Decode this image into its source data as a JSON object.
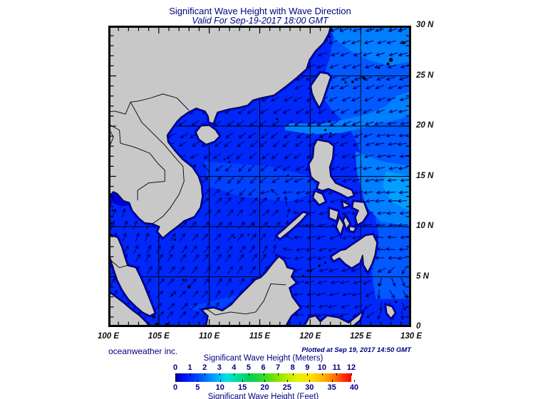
{
  "page": {
    "title": "Significant Wave Height with Wave Direction",
    "subtitle": "Valid For Sep-19-2017 18:00 GMT"
  },
  "footer": {
    "credit": "oceanweather inc.",
    "plotted_at": "Plotted at Sep 19, 2017 14:50 GMT"
  },
  "axes": {
    "lon_range": [
      100,
      130
    ],
    "lat_range": [
      0,
      30
    ],
    "grid_step_deg": 5,
    "tick_step_deg": 1,
    "x_ticks": [
      100,
      105,
      110,
      115,
      120,
      125,
      130
    ],
    "x_labels": [
      "100 E",
      "105 E",
      "110 E",
      "115 E",
      "120 E",
      "125 E",
      "130 E"
    ],
    "y_ticks": [
      30,
      25,
      20,
      15,
      10,
      5,
      0
    ],
    "y_labels": [
      "30 N",
      "25 N",
      "20 N",
      "15 N",
      "10 N",
      "5 N",
      "0"
    ]
  },
  "legend": {
    "title_meters": "Significant Wave Height (Meters)",
    "title_feet": "Significant Wave Height (Feet)",
    "meters_ticks": [
      0,
      1,
      2,
      3,
      4,
      5,
      6,
      7,
      8,
      9,
      10,
      11,
      12
    ],
    "feet_ticks": [
      0,
      5,
      10,
      15,
      20,
      25,
      30,
      35,
      40
    ],
    "meters_max": 12,
    "feet_per_meter": 3.28084,
    "gradient_stops": [
      [
        "#000000",
        0
      ],
      [
        "#0000c8",
        1.2
      ],
      [
        "#0024ff",
        8
      ],
      [
        "#0064ff",
        16
      ],
      [
        "#00aaff",
        23
      ],
      [
        "#00e0e0",
        29
      ],
      [
        "#00dfa0",
        35
      ],
      [
        "#00d056",
        42
      ],
      [
        "#2edc2e",
        50
      ],
      [
        "#7ce400",
        57
      ],
      [
        "#b6ec00",
        63
      ],
      [
        "#e8f000",
        70
      ],
      [
        "#ffe000",
        77
      ],
      [
        "#ffb400",
        84
      ],
      [
        "#ff7800",
        90
      ],
      [
        "#ff3c00",
        95
      ],
      [
        "#ff0000",
        100
      ]
    ]
  },
  "colors": {
    "title_text": "#000080",
    "axis_text": "#111111",
    "land": "#c8c8c8",
    "coastline": "#000000",
    "sea_base": "#0028f8",
    "sea_coastal_dark": "#0000d8",
    "sea_mid": "#0042ff",
    "sea_light": "#005aff",
    "sea_lighter": "#0080ff",
    "sea_lightest": "#00a0ff",
    "grid_line": "#000000",
    "wave_arrow": "#000070",
    "frame": "#000000"
  },
  "wave_field": {
    "note": "wave direction control points; dir = math angle degrees arrow points toward (0=E, 90=N)",
    "points": [
      {
        "lon": 127.0,
        "lat": 28.5,
        "dir": 195
      },
      {
        "lon": 122.5,
        "lat": 26.0,
        "dir": 200
      },
      {
        "lon": 124.5,
        "lat": 22.0,
        "dir": 207
      },
      {
        "lon": 128.5,
        "lat": 19.0,
        "dir": 186
      },
      {
        "lon": 128.5,
        "lat": 13.0,
        "dir": 183
      },
      {
        "lon": 127.5,
        "lat": 8.0,
        "dir": 172
      },
      {
        "lon": 128.5,
        "lat": 3.5,
        "dir": 305
      },
      {
        "lon": 124.0,
        "lat": 3.5,
        "dir": 192
      },
      {
        "lon": 119.5,
        "lat": 6.0,
        "dir": 198
      },
      {
        "lon": 121.8,
        "lat": 20.5,
        "dir": 212
      },
      {
        "lon": 117.0,
        "lat": 18.5,
        "dir": 222
      },
      {
        "lon": 110.0,
        "lat": 19.5,
        "dir": 218
      },
      {
        "lon": 113.5,
        "lat": 15.0,
        "dir": 228
      },
      {
        "lon": 109.0,
        "lat": 13.0,
        "dir": 38
      },
      {
        "lon": 111.0,
        "lat": 9.5,
        "dir": 45
      },
      {
        "lon": 114.5,
        "lat": 6.0,
        "dir": 52
      },
      {
        "lon": 106.5,
        "lat": 3.0,
        "dir": 42
      },
      {
        "lon": 103.0,
        "lat": 10.5,
        "dir": 72
      },
      {
        "lon": 101.2,
        "lat": 5.5,
        "dir": 58
      },
      {
        "lon": 115.5,
        "lat": 11.0,
        "dir": 38
      },
      {
        "lon": 122.0,
        "lat": 9.0,
        "dir": 200
      }
    ]
  }
}
